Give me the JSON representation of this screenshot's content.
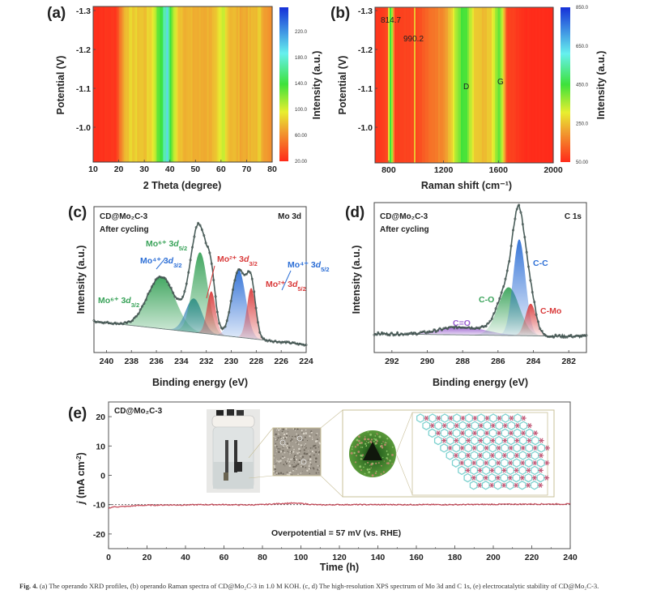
{
  "figure": {
    "caption_label": "Fig. 4.",
    "caption_text": "(a) The operando XRD profiles, (b) operando Raman spectra of CD@Mo₂C-3 in 1.0 M KOH. (c, d) The high-resolution XPS spectrum of Mo 3d and C 1s, (e) electrocatalytic stability of CD@Mo₂C-3."
  },
  "chart_data": [
    {
      "id": "a",
      "type": "heatmap",
      "panel_label": "(a)",
      "title": "",
      "xlabel": "2 Theta (degree)",
      "ylabel": "Potential (V)",
      "colorbar_label": "Intensity (a.u.)",
      "xlim": [
        10,
        80
      ],
      "ylim": [
        -0.91,
        -1.31
      ],
      "x_ticks": [
        "10",
        "20",
        "30",
        "40",
        "50",
        "60",
        "70",
        "80"
      ],
      "y_ticks": [
        "-1.3",
        "-1.2",
        "-1.1",
        "-1.0"
      ],
      "colorbar_ticks": [
        "220.0",
        "180.0",
        "140.0",
        "100.0",
        "60.00",
        "20.00"
      ],
      "colorbar_range": [
        20,
        240
      ],
      "profile": [
        {
          "x": 10,
          "v": 22
        },
        {
          "x": 19,
          "v": 25
        },
        {
          "x": 21,
          "v": 55
        },
        {
          "x": 23,
          "v": 78
        },
        {
          "x": 26,
          "v": 80
        },
        {
          "x": 30,
          "v": 75
        },
        {
          "x": 33,
          "v": 85
        },
        {
          "x": 35,
          "v": 115
        },
        {
          "x": 37,
          "v": 140
        },
        {
          "x": 39,
          "v": 175
        },
        {
          "x": 41,
          "v": 110
        },
        {
          "x": 43,
          "v": 80
        },
        {
          "x": 47,
          "v": 70
        },
        {
          "x": 52,
          "v": 68
        },
        {
          "x": 58,
          "v": 72
        },
        {
          "x": 61,
          "v": 100
        },
        {
          "x": 63,
          "v": 75
        },
        {
          "x": 68,
          "v": 68
        },
        {
          "x": 72,
          "v": 70
        },
        {
          "x": 75,
          "v": 78
        },
        {
          "x": 78,
          "v": 60
        },
        {
          "x": 80,
          "v": 55
        }
      ]
    },
    {
      "id": "b",
      "type": "heatmap",
      "panel_label": "(b)",
      "title": "",
      "xlabel": "Raman shift (cm⁻¹)",
      "ylabel": "Potential (V)",
      "colorbar_label": "Intensity (a.u.)",
      "xlim": [
        700,
        2000
      ],
      "ylim": [
        -0.91,
        -1.31
      ],
      "x_ticks": [
        "800",
        "1200",
        "1600",
        "2000"
      ],
      "y_ticks": [
        "-1.3",
        "-1.2",
        "-1.1",
        "-1.0"
      ],
      "colorbar_ticks": [
        "850.0",
        "650.0",
        "450.0",
        "250.0",
        "50.00"
      ],
      "colorbar_range": [
        50,
        850
      ],
      "annotations": [
        {
          "text": "814.7",
          "x": 814.7
        },
        {
          "text": "990.2",
          "x": 990.2
        },
        {
          "text": "D",
          "x": 1350
        },
        {
          "text": "G",
          "x": 1600
        }
      ],
      "profile": [
        {
          "x": 700,
          "v": 60
        },
        {
          "x": 790,
          "v": 90
        },
        {
          "x": 805,
          "v": 350
        },
        {
          "x": 815,
          "v": 520
        },
        {
          "x": 825,
          "v": 350
        },
        {
          "x": 845,
          "v": 80
        },
        {
          "x": 980,
          "v": 90
        },
        {
          "x": 990,
          "v": 260
        },
        {
          "x": 1000,
          "v": 90
        },
        {
          "x": 1100,
          "v": 140
        },
        {
          "x": 1200,
          "v": 190
        },
        {
          "x": 1260,
          "v": 270
        },
        {
          "x": 1320,
          "v": 420
        },
        {
          "x": 1360,
          "v": 440
        },
        {
          "x": 1420,
          "v": 270
        },
        {
          "x": 1500,
          "v": 230
        },
        {
          "x": 1560,
          "v": 290
        },
        {
          "x": 1600,
          "v": 420
        },
        {
          "x": 1630,
          "v": 330
        },
        {
          "x": 1660,
          "v": 90
        },
        {
          "x": 1800,
          "v": 55
        },
        {
          "x": 2000,
          "v": 50
        }
      ]
    },
    {
      "id": "c",
      "type": "line",
      "panel_label": "(c)",
      "title": "Mo 3d",
      "sample": "CD@Mo₂C-3",
      "condition": "After cycling",
      "xlabel": "Binding energy (eV)",
      "ylabel": "Intensity (a.u.)",
      "xlim": [
        241,
        224
      ],
      "ylim": [
        0,
        1.12
      ],
      "x_ticks": [
        "240",
        "238",
        "236",
        "234",
        "232",
        "230",
        "228",
        "226",
        "224"
      ],
      "baseline": {
        "start": 0.24,
        "end": 0.06
      },
      "series": [
        {
          "name": "Mo⁶⁺ 3d3/2",
          "center": 235.6,
          "height": 0.4,
          "width": 1.1,
          "color": "#3aa35a"
        },
        {
          "name": "Mo⁴⁺ 3d3/2",
          "center": 233.0,
          "height": 0.26,
          "width": 0.65,
          "color": "#2a7fb0"
        },
        {
          "name": "Mo⁶⁺ 3d5/2",
          "center": 232.5,
          "height": 0.62,
          "width": 0.6,
          "color": "#3aa35a"
        },
        {
          "name": "Mo²⁺ 3d3/2",
          "center": 231.6,
          "height": 0.33,
          "width": 0.35,
          "color": "#d93a3a"
        },
        {
          "name": "Mo⁴⁺ 3d5/2",
          "center": 229.4,
          "height": 0.52,
          "width": 0.55,
          "color": "#2d6fd6"
        },
        {
          "name": "Mo²⁺ 3d5/2",
          "center": 228.4,
          "height": 0.39,
          "width": 0.35,
          "color": "#d93a3a"
        }
      ],
      "labels": [
        {
          "text": "Mo⁶⁺ 3d",
          "sub": "3/2",
          "color": "#3aa35a"
        },
        {
          "text": "Mo⁴⁺ 3d",
          "sub": "3/2",
          "color": "#2d6fd6"
        },
        {
          "text": "Mo⁶⁺ 3d",
          "sub": "5/2",
          "color": "#3aa35a"
        },
        {
          "text": "Mo²⁺ 3d",
          "sub": "3/2",
          "color": "#d93a3a"
        },
        {
          "text": "Mo⁴⁺ 3d",
          "sub": "5/2",
          "color": "#2d6fd6"
        },
        {
          "text": "Mo²⁺ 3d",
          "sub": "5/2",
          "color": "#d93a3a"
        }
      ]
    },
    {
      "id": "d",
      "type": "line",
      "panel_label": "(d)",
      "title": "C 1s",
      "sample": "CD@Mo₂C-3",
      "condition": "After cycling",
      "xlabel": "Binding energy (eV)",
      "ylabel": "Intensity (a.u.)",
      "xlim": [
        293,
        281
      ],
      "ylim": [
        0,
        1.12
      ],
      "x_ticks": [
        "292",
        "290",
        "288",
        "286",
        "284",
        "282"
      ],
      "baseline": {
        "start": 0.14,
        "end": 0.12
      },
      "series": [
        {
          "name": "C=O",
          "center": 288.0,
          "height": 0.06,
          "width": 1.3,
          "color": "#9a5fd0"
        },
        {
          "name": "C-O",
          "center": 285.4,
          "height": 0.36,
          "width": 0.6,
          "color": "#3aa35a"
        },
        {
          "name": "C-C",
          "center": 284.8,
          "height": 0.72,
          "width": 0.35,
          "color": "#2d6fd6"
        },
        {
          "name": "C-Mo",
          "center": 284.15,
          "height": 0.24,
          "width": 0.3,
          "color": "#d93a3a"
        }
      ]
    },
    {
      "id": "e",
      "type": "line",
      "panel_label": "(e)",
      "title": "",
      "sample": "CD@Mo₂C-3",
      "xlabel": "Time (h)",
      "ylabel": "j (mA cm⁻²)",
      "xlim": [
        0,
        240
      ],
      "ylim": [
        -25,
        25
      ],
      "x_ticks": [
        "0",
        "20",
        "40",
        "60",
        "80",
        "100",
        "120",
        "140",
        "160",
        "180",
        "200",
        "220",
        "240"
      ],
      "y_ticks": [
        "20",
        "10",
        "0",
        "-10",
        "-20"
      ],
      "reference_line": -10,
      "annotation": "Overpotential = 57 mV (vs. RHE)",
      "series": [
        {
          "name": "j",
          "color": "#c0394a",
          "x": [
            0,
            2,
            5,
            10,
            15,
            20,
            30,
            40,
            50,
            60,
            70,
            80,
            85,
            90,
            95,
            100,
            105,
            110,
            120,
            130,
            140,
            160,
            180,
            200,
            220,
            240
          ],
          "y": [
            -11.2,
            -10.8,
            -10.7,
            -10.6,
            -10.3,
            -10.2,
            -10.1,
            -10.1,
            -10.0,
            -10.0,
            -10.1,
            -10.0,
            -9.8,
            -9.6,
            -9.5,
            -9.6,
            -9.9,
            -10.1,
            -10.0,
            -10.0,
            -10.0,
            -10.0,
            -10.0,
            -9.9,
            -9.8,
            -9.8
          ]
        }
      ],
      "insets": [
        "electrolytic-cell-photo",
        "electrode-surface-photo",
        "carbon-dot-nanoparticle",
        "Mo2C-crystal-lattice"
      ]
    }
  ]
}
